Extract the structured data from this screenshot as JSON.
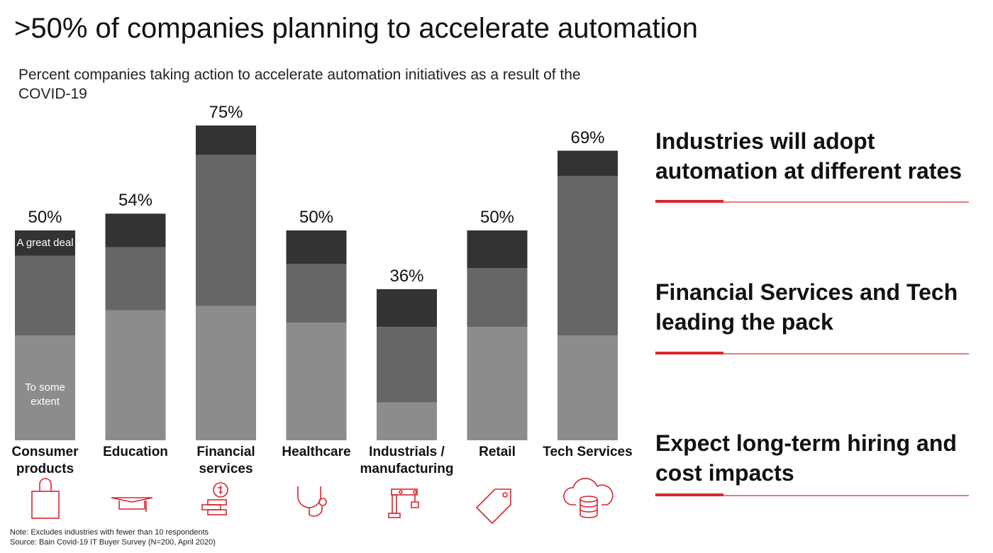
{
  "chart_data": {
    "type": "stacked-bar",
    "title": ">50% of companies planning to accelerate automation",
    "subtitle": "Percent companies taking action to accelerate automation initiatives as a result of the COVID-19",
    "categories": [
      "Consumer products",
      "Education",
      "Financial services",
      "Healthcare",
      "Industrials / manufacturing",
      "Retail",
      "Tech Services"
    ],
    "series": [
      {
        "name": "To some extent",
        "color": "#8c8c8c",
        "values": [
          25,
          31,
          32,
          28,
          9,
          27,
          25
        ]
      },
      {
        "color": "#666666",
        "values": [
          19,
          15,
          36,
          14,
          18,
          14,
          38
        ]
      },
      {
        "name": "A great deal",
        "color": "#333333",
        "values": [
          6,
          8,
          7,
          8,
          9,
          9,
          6
        ]
      }
    ],
    "totals": [
      50,
      54,
      75,
      50,
      36,
      50,
      69
    ],
    "total_labels": [
      "50%",
      "54%",
      "75%",
      "50%",
      "36%",
      "50%",
      "69%"
    ]
  },
  "takeaways": [
    "Industries will adopt automation at different rates",
    "Financial Services and Tech leading the pack",
    "Expect long-term hiring and cost impacts"
  ],
  "notes": [
    "Note: Excludes industries with fewer than 10 respondents",
    "Source: Bain Covid-19 IT Buyer Survey (N=200, April 2020)"
  ]
}
